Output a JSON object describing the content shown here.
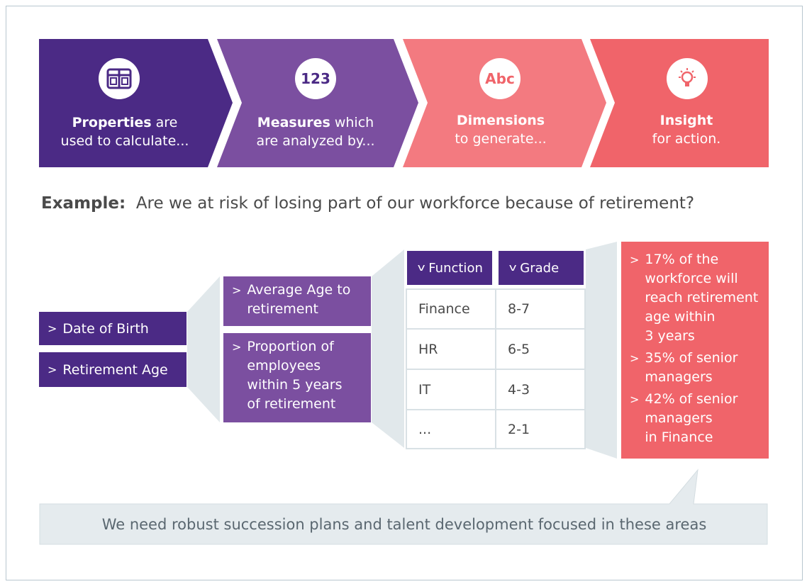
{
  "steps": [
    {
      "icon": "window-panels-icon",
      "bold": "Properties",
      "rest1": " are",
      "line2": "used to calculate..."
    },
    {
      "icon": "numeric-123-icon",
      "icon_text": "123",
      "bold": "Measures",
      "rest1": " which",
      "line2": "are analyzed by..."
    },
    {
      "icon": "text-abc-icon",
      "icon_text": "Abc",
      "bold": "Dimensions",
      "rest1": "",
      "line2": "to generate..."
    },
    {
      "icon": "lightbulb-icon",
      "bold": "Insight",
      "rest1": "",
      "line2": "for action."
    }
  ],
  "example": {
    "label": "Example:",
    "question": "Are we at risk of losing part of our workforce because of retirement?"
  },
  "properties": [
    "Date of Birth",
    "Retirement Age"
  ],
  "measures": [
    [
      "Average Age to",
      "retirement"
    ],
    [
      "Proportion of",
      "employees",
      "within 5 years",
      "of retirement"
    ]
  ],
  "dimensions": {
    "headers": [
      "Function",
      "Grade"
    ],
    "rows": [
      [
        "Finance",
        "8-7"
      ],
      [
        "HR",
        "6-5"
      ],
      [
        "IT",
        "4-3"
      ],
      [
        "...",
        "2-1"
      ]
    ]
  },
  "insights": [
    [
      "17% of the",
      "workforce will",
      "reach retirement",
      "age within",
      "3 years"
    ],
    [
      "35% of senior",
      "managers"
    ],
    [
      "42% of senior",
      "managers",
      "in Finance"
    ]
  ],
  "conclusion": "We need robust succession plans and talent development focused in these areas",
  "colors": {
    "dark_purple": "#4b2a85",
    "mid_purple": "#7b4fa0",
    "pink": "#f37a80",
    "coral": "#f0646a",
    "connector": "#e1e8eb"
  }
}
